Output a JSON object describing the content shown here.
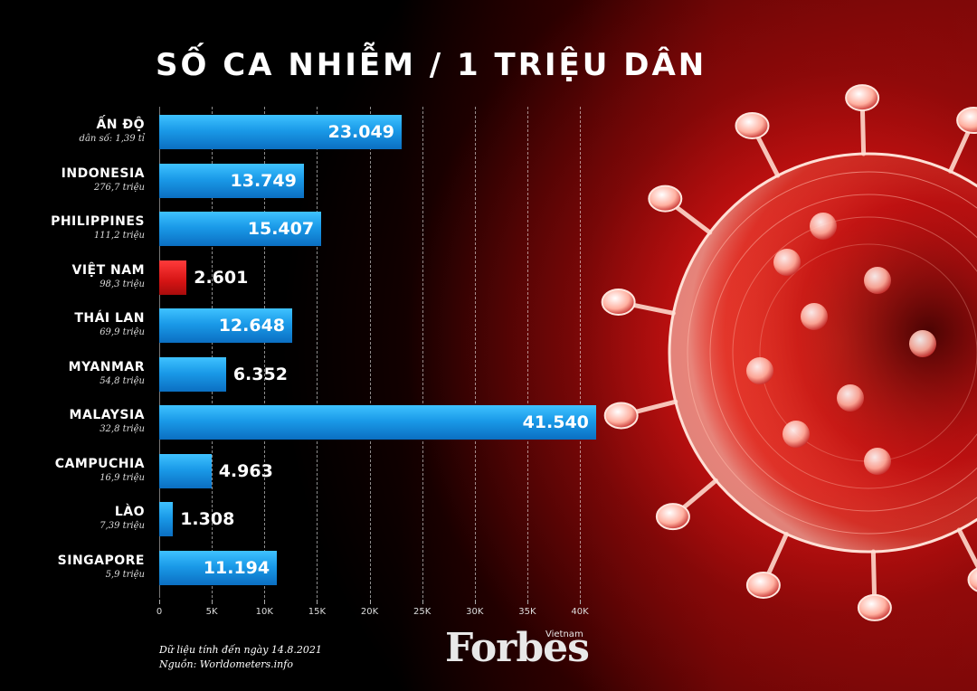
{
  "chart_data": {
    "type": "bar",
    "orientation": "horizontal",
    "title": "SỐ CA NHIỄM / 1 TRIỆU DÂN",
    "categories": [
      "ẤN ĐỘ",
      "INDONESIA",
      "PHILIPPINES",
      "VIỆT NAM",
      "THÁI LAN",
      "MYANMAR",
      "MALAYSIA",
      "CAMPUCHIA",
      "LÀO",
      "SINGAPORE"
    ],
    "populations": [
      "dân số: 1,39 tỉ",
      "276,7 triệu",
      "111,2 triệu",
      "98,3 triệu",
      "69,9 triệu",
      "54,8 triệu",
      "32,8 triệu",
      "16,9 triệu",
      "7,39 triệu",
      "5,9 triệu"
    ],
    "values": [
      23049,
      13749,
      15407,
      2601,
      12648,
      6352,
      41540,
      4963,
      1308,
      11194
    ],
    "value_labels": [
      "23.049",
      "13.749",
      "15.407",
      "2.601",
      "12.648",
      "6.352",
      "41.540",
      "4.963",
      "1.308",
      "11.194"
    ],
    "highlight_category": "VIỆT NAM",
    "xlim": [
      0,
      40000
    ],
    "x_ticks": [
      "0",
      "5K",
      "10K",
      "15K",
      "20K",
      "25K",
      "30K",
      "35K",
      "40K"
    ],
    "grid": true
  },
  "colors": {
    "bar": "#1a9ae8",
    "highlight": "#d51414"
  },
  "footer": {
    "date_note": "Dữ liệu tính đến ngày 14.8.2021",
    "source_note": "Nguồn: Worldometers.info"
  },
  "brand": {
    "name": "Forbes",
    "sub": "Vietnam"
  },
  "decor": {
    "illustration": "coronavirus-illustration"
  }
}
